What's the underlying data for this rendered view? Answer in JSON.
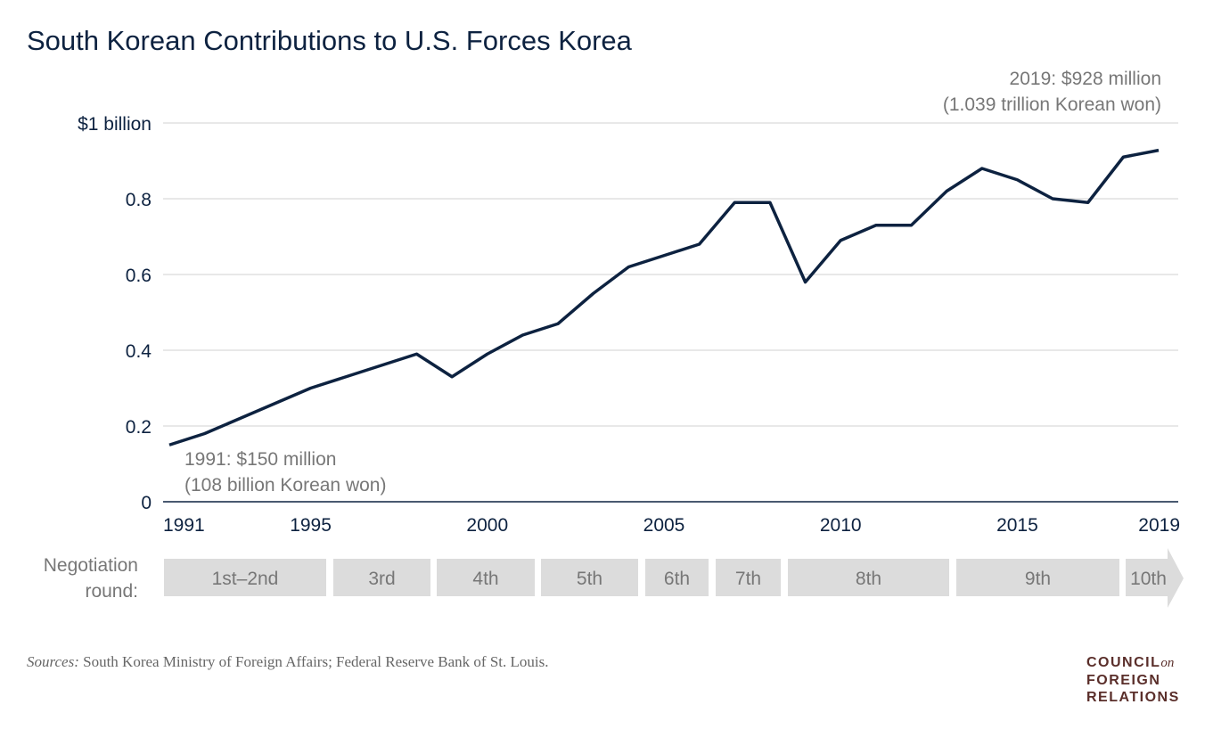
{
  "chart_data": {
    "type": "line",
    "title": "South Korean Contributions to U.S. Forces Korea",
    "x": [
      1991,
      1992,
      1993,
      1994,
      1995,
      1996,
      1997,
      1998,
      1999,
      2000,
      2001,
      2002,
      2003,
      2004,
      2005,
      2006,
      2007,
      2008,
      2009,
      2010,
      2011,
      2012,
      2013,
      2014,
      2015,
      2016,
      2017,
      2018,
      2019
    ],
    "values": [
      0.15,
      0.18,
      0.22,
      0.26,
      0.3,
      0.33,
      0.36,
      0.39,
      0.33,
      0.39,
      0.44,
      0.47,
      0.55,
      0.62,
      0.65,
      0.68,
      0.79,
      0.79,
      0.58,
      0.69,
      0.73,
      0.73,
      0.82,
      0.88,
      0.85,
      0.8,
      0.79,
      0.91,
      0.928
    ],
    "ylim": [
      0,
      1
    ],
    "y_ticks": [
      0,
      0.2,
      0.4,
      0.6,
      0.8,
      1
    ],
    "y_tick_labels": [
      "0",
      "0.2",
      "0.4",
      "0.6",
      "0.8",
      "$1 billion"
    ],
    "x_ticks": [
      1991,
      1995,
      2000,
      2005,
      2010,
      2015,
      2019
    ],
    "x_tick_labels": [
      "1991",
      "1995",
      "2000",
      "2005",
      "2010",
      "2015",
      "2019"
    ],
    "grid": true,
    "line_color": "#0d2240",
    "annotations": {
      "start": [
        "1991: $150 million",
        "(108 billion Korean won)"
      ],
      "end": [
        "2019: $928 million",
        "(1.039 trillion Korean won)"
      ]
    },
    "negotiation": {
      "label": [
        "Negotiation",
        "round:"
      ],
      "rounds": [
        "1st–2nd",
        "3rd",
        "4th",
        "5th",
        "6th",
        "7th",
        "8th",
        "9th",
        "10th"
      ]
    }
  },
  "footer": {
    "sources_label": "Sources:",
    "sources_text": " South Korea Ministry of Foreign Affairs; Federal Reserve Bank of St. Louis.",
    "logo": [
      "COUNCIL",
      "on",
      "FOREIGN",
      "RELATIONS"
    ]
  }
}
